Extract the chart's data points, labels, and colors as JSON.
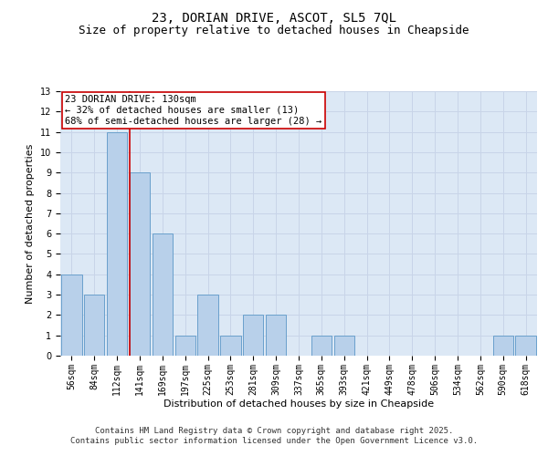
{
  "title_line1": "23, DORIAN DRIVE, ASCOT, SL5 7QL",
  "title_line2": "Size of property relative to detached houses in Cheapside",
  "xlabel": "Distribution of detached houses by size in Cheapside",
  "ylabel": "Number of detached properties",
  "categories": [
    "56sqm",
    "84sqm",
    "112sqm",
    "141sqm",
    "169sqm",
    "197sqm",
    "225sqm",
    "253sqm",
    "281sqm",
    "309sqm",
    "337sqm",
    "365sqm",
    "393sqm",
    "421sqm",
    "449sqm",
    "478sqm",
    "506sqm",
    "534sqm",
    "562sqm",
    "590sqm",
    "618sqm"
  ],
  "values": [
    4,
    3,
    11,
    9,
    6,
    1,
    3,
    1,
    2,
    2,
    0,
    1,
    1,
    0,
    0,
    0,
    0,
    0,
    0,
    1,
    1
  ],
  "bar_color": "#b8d0ea",
  "bar_edge_color": "#6aa0cc",
  "red_line_color": "#cc0000",
  "annotation_text": "23 DORIAN DRIVE: 130sqm\n← 32% of detached houses are smaller (13)\n68% of semi-detached houses are larger (28) →",
  "annotation_box_color": "#ffffff",
  "annotation_box_edge_color": "#cc0000",
  "ylim": [
    0,
    13
  ],
  "yticks": [
    0,
    1,
    2,
    3,
    4,
    5,
    6,
    7,
    8,
    9,
    10,
    11,
    12,
    13
  ],
  "grid_color": "#c8d4e8",
  "background_color": "#dce8f5",
  "footer_text": "Contains HM Land Registry data © Crown copyright and database right 2025.\nContains public sector information licensed under the Open Government Licence v3.0.",
  "title_fontsize": 10,
  "subtitle_fontsize": 9,
  "axis_label_fontsize": 8,
  "tick_fontsize": 7,
  "annotation_fontsize": 7.5,
  "footer_fontsize": 6.5
}
